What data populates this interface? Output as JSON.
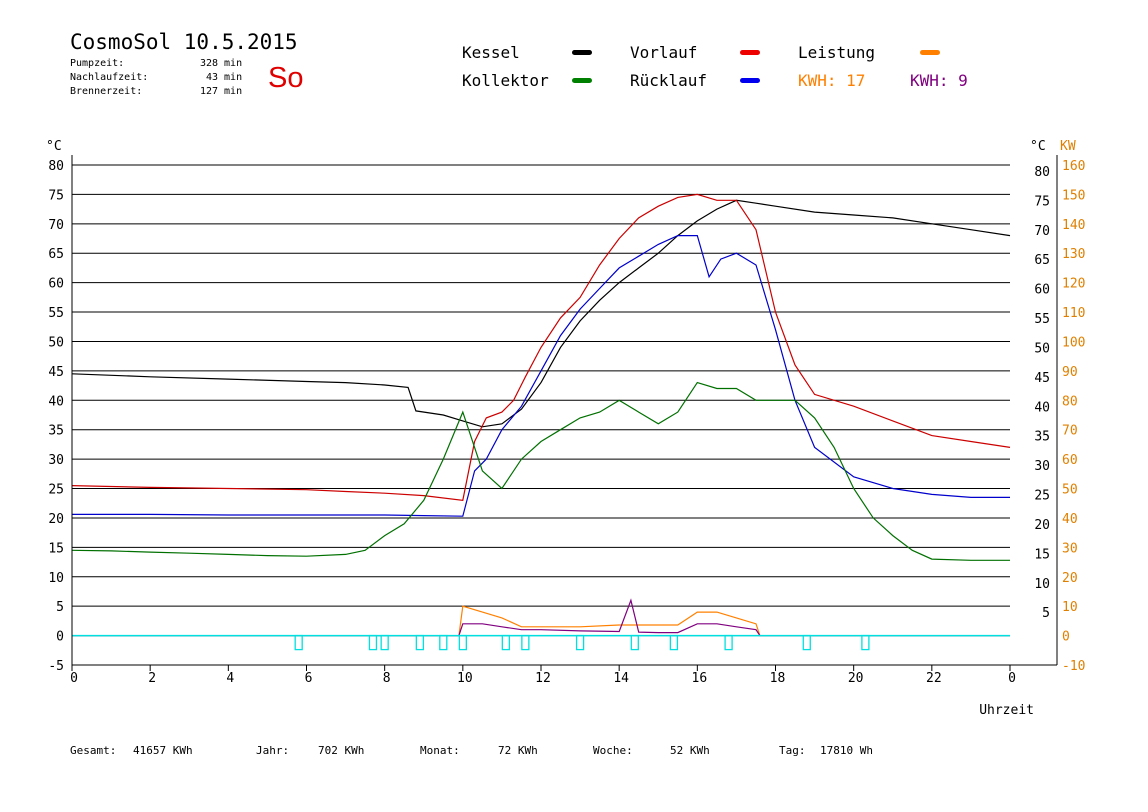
{
  "header": {
    "title": "CosmoSol 10.5.2015",
    "day": "So",
    "rows": [
      {
        "label": "Pumpzeit:",
        "value": "328",
        "unit": "min"
      },
      {
        "label": "Nachlaufzeit:",
        "value": "43",
        "unit": "min"
      },
      {
        "label": "Brennerzeit:",
        "value": "127",
        "unit": "min"
      }
    ]
  },
  "legend": {
    "kessel": "Kessel",
    "vorlauf": "Vorlauf",
    "leistung": "Leistung",
    "kollektor": "Kollektor",
    "ruecklauf": "Rücklauf",
    "kwh1_label": "KWH:",
    "kwh1_value": "17",
    "kwh2_label": "KWH:",
    "kwh2_value": "9"
  },
  "footer": {
    "gesamt_label": "Gesamt:",
    "gesamt_value": "41657 KWh",
    "jahr_label": "Jahr:",
    "jahr_value": "702 KWh",
    "monat_label": "Monat:",
    "monat_value": "72 KWh",
    "woche_label": "Woche:",
    "woche_value": "52 KWh",
    "tag_label": "Tag:",
    "tag_value": "17810 Wh"
  },
  "colors": {
    "kessel": "#000000",
    "vorlauf": "#cc0000",
    "ruecklauf": "#0000cc",
    "kollektor": "#007000",
    "leistung": "#ff8000",
    "kwh2": "#800080",
    "pump": "#00e0e0",
    "axis_right": "#e08000"
  },
  "chart_data": {
    "type": "line",
    "xlabel": "Uhrzeit",
    "ylabel_left": "°C",
    "ylabel_right_1": "°C",
    "ylabel_right_2": "KW",
    "xlim": [
      0,
      24
    ],
    "ylim": [
      -5,
      80
    ],
    "y2lim": [
      -10,
      160
    ],
    "x_ticks": [
      "0",
      "2",
      "4",
      "6",
      "8",
      "10",
      "12",
      "14",
      "16",
      "18",
      "20",
      "22",
      "0"
    ],
    "y_ticks": [
      "80",
      "75",
      "70",
      "65",
      "60",
      "55",
      "50",
      "45",
      "40",
      "35",
      "30",
      "25",
      "20",
      "15",
      "10",
      "5",
      "0",
      "-5"
    ],
    "y_right_ticks": [
      "80",
      "75",
      "70",
      "65",
      "60",
      "55",
      "50",
      "45",
      "40",
      "35",
      "30",
      "25",
      "20",
      "15",
      "10",
      "5"
    ],
    "y2_ticks": [
      "160",
      "150",
      "140",
      "130",
      "120",
      "110",
      "100",
      "90",
      "80",
      "70",
      "60",
      "50",
      "40",
      "30",
      "20",
      "10",
      "0",
      "-10"
    ],
    "grid": true,
    "series": [
      {
        "name": "Kessel",
        "color": "#000000",
        "x": [
          0,
          2,
          4,
          6,
          7,
          8,
          8.6,
          8.8,
          9.5,
          10,
          10.5,
          11,
          11.5,
          12,
          12.5,
          13,
          13.5,
          14,
          14.5,
          15,
          15.5,
          16,
          16.5,
          17,
          17.5,
          18,
          19,
          20,
          21,
          22,
          23,
          24
        ],
        "y": [
          44.5,
          44,
          43.6,
          43.2,
          43,
          42.6,
          42.2,
          38.2,
          37.5,
          36.5,
          35.5,
          36,
          38.5,
          43,
          49,
          53.5,
          57,
          60,
          62.5,
          65,
          68,
          70.5,
          72.5,
          74,
          73.5,
          73,
          72,
          71.5,
          71,
          70,
          69,
          68
        ]
      },
      {
        "name": "Vorlauf",
        "color": "#cc0000",
        "x": [
          0,
          2,
          4,
          6,
          7,
          8,
          9,
          10,
          10.3,
          10.6,
          11,
          11.3,
          11.6,
          12,
          12.5,
          13,
          13.5,
          14,
          14.5,
          15,
          15.5,
          16,
          16.5,
          17,
          17.5,
          18,
          18.5,
          19,
          20,
          21,
          22,
          23,
          24
        ],
        "y": [
          25.5,
          25.2,
          25,
          24.8,
          24.5,
          24.2,
          23.8,
          23,
          33,
          37,
          38,
          40,
          44,
          49,
          54,
          57.5,
          63,
          67.5,
          71,
          73,
          74.5,
          75,
          74,
          74,
          69,
          55,
          46,
          41,
          39,
          36.5,
          34,
          33,
          32
        ]
      },
      {
        "name": "Rücklauf",
        "color": "#0000cc",
        "x": [
          0,
          2,
          4,
          6,
          7,
          8,
          9,
          10,
          10.3,
          10.6,
          11,
          11.5,
          12,
          12.5,
          13,
          13.5,
          14,
          14.5,
          15,
          15.5,
          16,
          16.3,
          16.6,
          17,
          17.5,
          18,
          18.5,
          19,
          20,
          21,
          22,
          23,
          24
        ],
        "y": [
          20.6,
          20.6,
          20.5,
          20.5,
          20.5,
          20.5,
          20.4,
          20.3,
          28,
          30,
          35,
          39,
          45,
          51,
          55.5,
          59,
          62.5,
          64.5,
          66.5,
          68,
          68,
          61,
          64,
          65,
          63,
          52,
          40,
          32,
          27,
          25,
          24,
          23.5,
          23.5
        ]
      },
      {
        "name": "Kollektor",
        "color": "#007000",
        "x": [
          0,
          1,
          2,
          3,
          4,
          5,
          6,
          7,
          7.5,
          8,
          8.5,
          9,
          9.5,
          10,
          10.5,
          11,
          11.5,
          12,
          12.5,
          13,
          13.5,
          14,
          14.5,
          15,
          15.5,
          16,
          16.5,
          17,
          17.5,
          18,
          18.5,
          19,
          19.5,
          20,
          20.5,
          21,
          21.5,
          22,
          23,
          24
        ],
        "y": [
          14.5,
          14.4,
          14.2,
          14,
          13.8,
          13.6,
          13.5,
          13.8,
          14.5,
          17,
          19,
          23,
          30,
          38,
          28,
          25,
          30,
          33,
          35,
          37,
          38,
          40,
          38,
          36,
          38,
          43,
          42,
          42,
          40,
          40,
          40,
          37,
          32,
          25,
          20,
          17,
          14.5,
          13,
          12.8,
          12.8
        ]
      },
      {
        "name": "Leistung",
        "color": "#ff8000",
        "x": [
          0,
          9.9,
          10,
          10.5,
          11,
          11.5,
          12,
          13,
          14,
          15,
          15.5,
          16,
          16.5,
          17,
          17.5,
          17.6,
          24
        ],
        "y": [
          0,
          0,
          5,
          4,
          3,
          1.5,
          1.5,
          1.5,
          1.8,
          1.8,
          1.8,
          4,
          4,
          3,
          2,
          0,
          0
        ]
      },
      {
        "name": "KWH 9",
        "color": "#800080",
        "x": [
          0,
          9.9,
          10,
          10.5,
          11,
          11.5,
          12,
          13,
          14,
          14.3,
          14.5,
          15,
          15.5,
          16,
          16.5,
          17,
          17.5,
          17.6,
          24
        ],
        "y": [
          0,
          0,
          2,
          2,
          1.5,
          1,
          1,
          0.8,
          0.7,
          6,
          0.6,
          0.5,
          0.5,
          2,
          2,
          1.5,
          1,
          0,
          0
        ]
      }
    ],
    "pump_ticks_x": [
      5.8,
      7.7,
      8.0,
      8.9,
      9.5,
      10.0,
      11.1,
      11.6,
      13.0,
      14.4,
      15.4,
      16.8,
      18.8,
      20.3
    ]
  }
}
